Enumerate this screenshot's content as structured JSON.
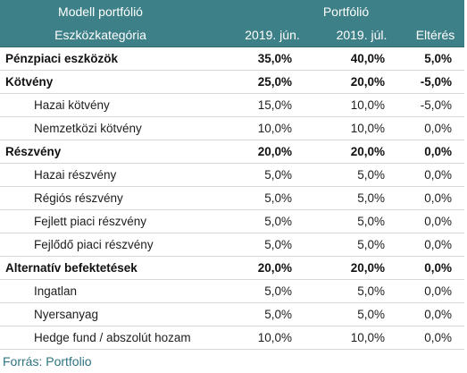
{
  "header": {
    "model_label": "Modell portfólió",
    "portfolio_label": "Portfólió",
    "category_label": "Eszközkategória",
    "col_jun": "2019. jún.",
    "col_jul": "2019. júl.",
    "col_dev": "Eltérés"
  },
  "rows": [
    {
      "category": "Pénzpiaci eszközök",
      "jun": "35,0%",
      "jul": "40,0%",
      "dev": "5,0%",
      "level": "main"
    },
    {
      "category": "Kötvény",
      "jun": "25,0%",
      "jul": "20,0%",
      "dev": "-5,0%",
      "level": "main"
    },
    {
      "category": "Hazai kötvény",
      "jun": "15,0%",
      "jul": "10,0%",
      "dev": "-5,0%",
      "level": "sub"
    },
    {
      "category": "Nemzetközi kötvény",
      "jun": "10,0%",
      "jul": "10,0%",
      "dev": "0,0%",
      "level": "sub"
    },
    {
      "category": "Részvény",
      "jun": "20,0%",
      "jul": "20,0%",
      "dev": "0,0%",
      "level": "main"
    },
    {
      "category": "Hazai részvény",
      "jun": "5,0%",
      "jul": "5,0%",
      "dev": "0,0%",
      "level": "sub"
    },
    {
      "category": "Régiós részvény",
      "jun": "5,0%",
      "jul": "5,0%",
      "dev": "0,0%",
      "level": "sub"
    },
    {
      "category": "Fejlett piaci részvény",
      "jun": "5,0%",
      "jul": "5,0%",
      "dev": "0,0%",
      "level": "sub"
    },
    {
      "category": "Fejlődő piaci részvény",
      "jun": "5,0%",
      "jul": "5,0%",
      "dev": "0,0%",
      "level": "sub"
    },
    {
      "category": "Alternatív befektetések",
      "jun": "20,0%",
      "jul": "20,0%",
      "dev": "0,0%",
      "level": "main"
    },
    {
      "category": "Ingatlan",
      "jun": "5,0%",
      "jul": "5,0%",
      "dev": "0,0%",
      "level": "sub"
    },
    {
      "category": "Nyersanyag",
      "jun": "5,0%",
      "jul": "5,0%",
      "dev": "0,0%",
      "level": "sub"
    },
    {
      "category": "Hedge fund / abszolút hozam",
      "jun": "10,0%",
      "jul": "10,0%",
      "dev": "0,0%",
      "level": "sub"
    }
  ],
  "source": "Forrás: Portfolio",
  "colors": {
    "header_bg": "#3e8088",
    "source_text": "#2e7480"
  }
}
